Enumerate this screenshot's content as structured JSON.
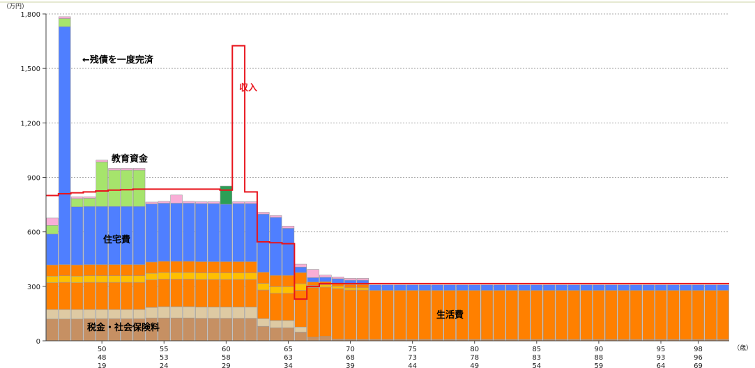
{
  "chart_data": {
    "type": "bar",
    "stacked": true,
    "y_unit_label": "（万円）",
    "x_unit_label": "（歳）",
    "ylim": [
      0,
      1800
    ],
    "y_ticks": [
      0,
      300,
      600,
      900,
      1200,
      1500,
      1800
    ],
    "y_tick_labels": [
      "0",
      "300",
      "600",
      "900",
      "1,200",
      "1,500",
      "1,800"
    ],
    "grid": true,
    "age_start": 46,
    "age_end": 100,
    "x_tick_groups": [
      {
        "age": 50,
        "labels": [
          "50",
          "48",
          "19"
        ]
      },
      {
        "age": 55,
        "labels": [
          "55",
          "53",
          "24"
        ]
      },
      {
        "age": 60,
        "labels": [
          "60",
          "58",
          "29"
        ]
      },
      {
        "age": 65,
        "labels": [
          "65",
          "63",
          "34"
        ]
      },
      {
        "age": 70,
        "labels": [
          "70",
          "68",
          "39"
        ]
      },
      {
        "age": 75,
        "labels": [
          "75",
          "73",
          "44"
        ]
      },
      {
        "age": 80,
        "labels": [
          "80",
          "78",
          "49"
        ]
      },
      {
        "age": 85,
        "labels": [
          "85",
          "83",
          "54"
        ]
      },
      {
        "age": 90,
        "labels": [
          "90",
          "88",
          "59"
        ]
      },
      {
        "age": 95,
        "labels": [
          "95",
          "93",
          "64"
        ]
      },
      {
        "age": 98,
        "labels": [
          "98",
          "96",
          "69"
        ]
      }
    ],
    "colors": {
      "tax": "#c69063",
      "tan": "#decaa3",
      "living": "#ff8000",
      "yellow": "#ffc000",
      "housing": "#4f7fff",
      "education": "#a6e46c",
      "pink": "#f9aed6",
      "green": "#2c9f56",
      "income": "#e8141c",
      "grid": "#a9a9a9",
      "bar_edge": "#9a9a9a"
    },
    "series": [
      {
        "key": "tax",
        "values": [
          120,
          120,
          120,
          122,
          122,
          122,
          122,
          122,
          126,
          126,
          126,
          126,
          124,
          124,
          124,
          124,
          124,
          80,
          72,
          72,
          48,
          20,
          24,
          10,
          8,
          8,
          8,
          8,
          8,
          8,
          8,
          8,
          8,
          8,
          8,
          8,
          8,
          8,
          8,
          8,
          8,
          8,
          8,
          8,
          8,
          8,
          8,
          8,
          8,
          8,
          8,
          8,
          8,
          8,
          8
        ]
      },
      {
        "key": "tan",
        "values": [
          52,
          52,
          52,
          50,
          50,
          50,
          50,
          50,
          58,
          62,
          62,
          62,
          62,
          62,
          62,
          62,
          62,
          42,
          40,
          40,
          28,
          0,
          0,
          0,
          0,
          0,
          0,
          0,
          0,
          0,
          0,
          0,
          0,
          0,
          0,
          0,
          0,
          0,
          0,
          0,
          0,
          0,
          0,
          0,
          0,
          0,
          0,
          0,
          0,
          0,
          0,
          0,
          0,
          0,
          0
        ]
      },
      {
        "key": "living",
        "values": [
          148,
          150,
          148,
          150,
          150,
          150,
          150,
          150,
          152,
          152,
          152,
          152,
          152,
          152,
          152,
          152,
          152,
          158,
          150,
          150,
          202,
          274,
          272,
          278,
          272,
          272,
          270,
          270,
          270,
          270,
          270,
          270,
          270,
          270,
          270,
          270,
          270,
          270,
          270,
          270,
          270,
          270,
          270,
          270,
          270,
          270,
          270,
          270,
          270,
          270,
          270,
          270,
          270,
          270,
          270
        ]
      },
      {
        "key": "yellow",
        "values": [
          36,
          36,
          36,
          36,
          36,
          36,
          36,
          36,
          36,
          36,
          36,
          36,
          36,
          36,
          36,
          36,
          36,
          36,
          36,
          36,
          36,
          12,
          12,
          12,
          12,
          12,
          0,
          0,
          0,
          0,
          0,
          0,
          0,
          0,
          0,
          0,
          0,
          0,
          0,
          0,
          0,
          0,
          0,
          0,
          0,
          0,
          0,
          0,
          0,
          0,
          0,
          0,
          0,
          0,
          0
        ]
      },
      {
        "key": "orange",
        "values": [
          62,
          62,
          62,
          62,
          62,
          62,
          62,
          62,
          62,
          62,
          62,
          62,
          62,
          62,
          62,
          62,
          62,
          62,
          62,
          62,
          62,
          18,
          18,
          18,
          18,
          18,
          0,
          0,
          0,
          0,
          0,
          0,
          0,
          0,
          0,
          0,
          0,
          0,
          0,
          0,
          0,
          0,
          0,
          0,
          0,
          0,
          0,
          0,
          0,
          0,
          0,
          0,
          0,
          0,
          0
        ]
      },
      {
        "key": "housing",
        "values": [
          170,
          1310,
          320,
          320,
          320,
          320,
          320,
          320,
          320,
          320,
          320,
          320,
          320,
          320,
          320,
          320,
          320,
          320,
          320,
          260,
          30,
          24,
          24,
          24,
          24,
          24,
          30,
          30,
          30,
          30,
          30,
          30,
          30,
          30,
          30,
          30,
          30,
          30,
          30,
          30,
          30,
          30,
          30,
          30,
          30,
          30,
          30,
          30,
          30,
          30,
          30,
          30,
          30,
          30,
          30
        ]
      },
      {
        "key": "education",
        "values": [
          48,
          45,
          45,
          45,
          245,
          200,
          200,
          200,
          0,
          0,
          0,
          0,
          0,
          0,
          0,
          0,
          0,
          0,
          0,
          0,
          0,
          0,
          0,
          0,
          0,
          0,
          0,
          0,
          0,
          0,
          0,
          0,
          0,
          0,
          0,
          0,
          0,
          0,
          0,
          0,
          0,
          0,
          0,
          0,
          0,
          0,
          0,
          0,
          0,
          0,
          0,
          0,
          0,
          0,
          0
        ]
      },
      {
        "key": "green",
        "values": [
          0,
          0,
          0,
          0,
          0,
          0,
          0,
          0,
          0,
          0,
          0,
          0,
          0,
          0,
          0,
          0,
          0,
          0,
          0,
          0,
          0,
          0,
          0,
          0,
          0,
          0,
          0,
          0,
          0,
          0,
          0,
          0,
          0,
          0,
          0,
          0,
          0,
          0,
          0,
          0,
          0,
          0,
          0,
          0,
          0,
          0,
          0,
          0,
          0,
          0,
          0,
          0,
          0,
          0,
          0
        ]
      },
      {
        "key": "pink",
        "values": [
          40,
          10,
          10,
          8,
          10,
          10,
          10,
          10,
          10,
          10,
          45,
          10,
          10,
          10,
          10,
          10,
          10,
          10,
          10,
          12,
          16,
          45,
          12,
          10,
          10,
          10,
          0,
          0,
          0,
          0,
          0,
          0,
          0,
          0,
          0,
          0,
          0,
          0,
          0,
          0,
          0,
          0,
          0,
          0,
          0,
          0,
          0,
          0,
          0,
          0,
          0,
          0,
          0,
          0,
          0
        ]
      }
    ],
    "green_override": {
      "index": 14,
      "base": 752,
      "top": 852
    },
    "income": [
      800,
      810,
      815,
      820,
      825,
      830,
      832,
      835,
      835,
      835,
      835,
      835,
      835,
      835,
      830,
      1625,
      820,
      545,
      540,
      535,
      230,
      300,
      315,
      315,
      315,
      315,
      315,
      315,
      315,
      315,
      315,
      315,
      315,
      315,
      315,
      315,
      315,
      315,
      315,
      315,
      315,
      315,
      315,
      315,
      315,
      315,
      315,
      315,
      315,
      315,
      315,
      315,
      315,
      315,
      315
    ],
    "annotations": [
      {
        "key": "zansai",
        "text": "←残債を一度完済",
        "color": "black"
      },
      {
        "key": "kyoiku",
        "text": "教育資金",
        "color": "black"
      },
      {
        "key": "shunyu",
        "text": "収入",
        "color": "red"
      },
      {
        "key": "jutaku",
        "text": "住宅費",
        "color": "black"
      },
      {
        "key": "seikatsu",
        "text": "生活費",
        "color": "black"
      },
      {
        "key": "zeikin",
        "text": "税金・社会保険料",
        "color": "black"
      }
    ]
  }
}
